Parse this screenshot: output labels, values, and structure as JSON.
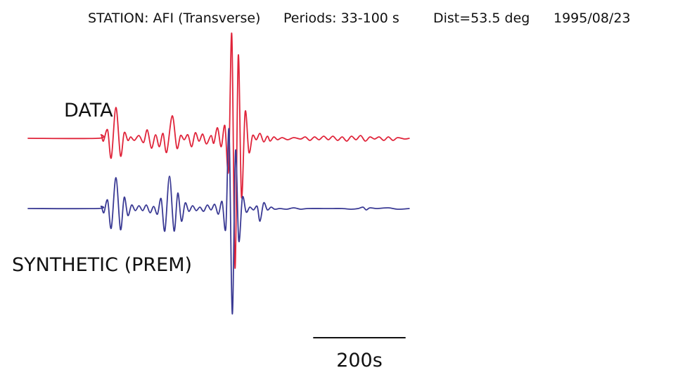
{
  "header": {
    "station": "STATION: AFI (Transverse)",
    "periods": "Periods: 33-100 s",
    "distance": "Dist=53.5 deg",
    "date": "1995/08/23"
  },
  "chart_data": {
    "type": "line",
    "x_units": "s",
    "scale_bar": {
      "duration": 200,
      "label": "200s"
    },
    "series": [
      {
        "name": "DATA",
        "color": "#e0243a",
        "points": [
          [
            0,
            0
          ],
          [
            150,
            0
          ],
          [
            158,
            5
          ],
          [
            163,
            -4
          ],
          [
            172,
            12
          ],
          [
            180,
            -28
          ],
          [
            190,
            44
          ],
          [
            200,
            -25
          ],
          [
            208,
            8
          ],
          [
            216,
            -3
          ],
          [
            222,
            2
          ],
          [
            230,
            -3
          ],
          [
            240,
            4
          ],
          [
            250,
            -6
          ],
          [
            258,
            12
          ],
          [
            267,
            -14
          ],
          [
            276,
            5
          ],
          [
            284,
            -12
          ],
          [
            292,
            7
          ],
          [
            300,
            -20
          ],
          [
            312,
            32
          ],
          [
            322,
            -14
          ],
          [
            330,
            4
          ],
          [
            338,
            -2
          ],
          [
            346,
            5
          ],
          [
            354,
            -12
          ],
          [
            362,
            8
          ],
          [
            370,
            -4
          ],
          [
            378,
            6
          ],
          [
            386,
            -8
          ],
          [
            396,
            4
          ],
          [
            402,
            -7
          ],
          [
            410,
            15
          ],
          [
            418,
            -12
          ],
          [
            426,
            18
          ],
          [
            434,
            -46
          ],
          [
            441,
            148
          ],
          [
            448,
            -185
          ],
          [
            455,
            118
          ],
          [
            462,
            -84
          ],
          [
            470,
            38
          ],
          [
            478,
            -20
          ],
          [
            486,
            4
          ],
          [
            494,
            -2
          ],
          [
            502,
            7
          ],
          [
            510,
            -5
          ],
          [
            518,
            3
          ],
          [
            524,
            -4
          ],
          [
            532,
            2
          ],
          [
            540,
            -2
          ],
          [
            550,
            1
          ],
          [
            562,
            -2
          ],
          [
            575,
            1
          ],
          [
            590,
            -1
          ],
          [
            600,
            2
          ],
          [
            610,
            -3
          ],
          [
            620,
            2
          ],
          [
            630,
            -2
          ],
          [
            640,
            3
          ],
          [
            650,
            -2
          ],
          [
            660,
            3
          ],
          [
            670,
            -3
          ],
          [
            680,
            2
          ],
          [
            690,
            -4
          ],
          [
            700,
            3
          ],
          [
            710,
            -2
          ],
          [
            720,
            4
          ],
          [
            730,
            -4
          ],
          [
            740,
            2
          ],
          [
            750,
            -1
          ],
          [
            760,
            2
          ],
          [
            770,
            -3
          ],
          [
            780,
            2
          ],
          [
            790,
            -3
          ],
          [
            800,
            1
          ],
          [
            815,
            -1
          ],
          [
            825,
            0
          ]
        ]
      },
      {
        "name": "SYNTHETIC (PREM)",
        "color": "#3a3a94",
        "points": [
          [
            0,
            0
          ],
          [
            150,
            0
          ],
          [
            158,
            3
          ],
          [
            164,
            -6
          ],
          [
            172,
            12
          ],
          [
            180,
            -28
          ],
          [
            190,
            44
          ],
          [
            200,
            -30
          ],
          [
            208,
            16
          ],
          [
            216,
            -10
          ],
          [
            224,
            5
          ],
          [
            232,
            -3
          ],
          [
            240,
            4
          ],
          [
            248,
            -3
          ],
          [
            256,
            5
          ],
          [
            264,
            -6
          ],
          [
            272,
            3
          ],
          [
            280,
            -8
          ],
          [
            288,
            14
          ],
          [
            296,
            -32
          ],
          [
            306,
            46
          ],
          [
            316,
            -32
          ],
          [
            324,
            22
          ],
          [
            332,
            -18
          ],
          [
            340,
            8
          ],
          [
            348,
            -4
          ],
          [
            356,
            4
          ],
          [
            364,
            -3
          ],
          [
            372,
            2
          ],
          [
            380,
            -4
          ],
          [
            388,
            5
          ],
          [
            396,
            -2
          ],
          [
            404,
            6
          ],
          [
            412,
            -8
          ],
          [
            420,
            10
          ],
          [
            428,
            -28
          ],
          [
            435,
            112
          ],
          [
            442,
            -150
          ],
          [
            449,
            82
          ],
          [
            456,
            -46
          ],
          [
            464,
            16
          ],
          [
            472,
            -5
          ],
          [
            480,
            2
          ],
          [
            488,
            -2
          ],
          [
            496,
            3
          ],
          [
            502,
            -18
          ],
          [
            510,
            8
          ],
          [
            518,
            -2
          ],
          [
            526,
            2
          ],
          [
            534,
            -1
          ],
          [
            545,
            0
          ],
          [
            560,
            -1
          ],
          [
            575,
            1
          ],
          [
            590,
            -1
          ],
          [
            605,
            0
          ],
          [
            640,
            0
          ],
          [
            660,
            0
          ],
          [
            680,
            0
          ],
          [
            700,
            -1
          ],
          [
            715,
            0
          ],
          [
            725,
            2
          ],
          [
            732,
            -2
          ],
          [
            740,
            1
          ],
          [
            755,
            0
          ],
          [
            780,
            1
          ],
          [
            800,
            -1
          ],
          [
            825,
            0
          ]
        ]
      }
    ]
  }
}
